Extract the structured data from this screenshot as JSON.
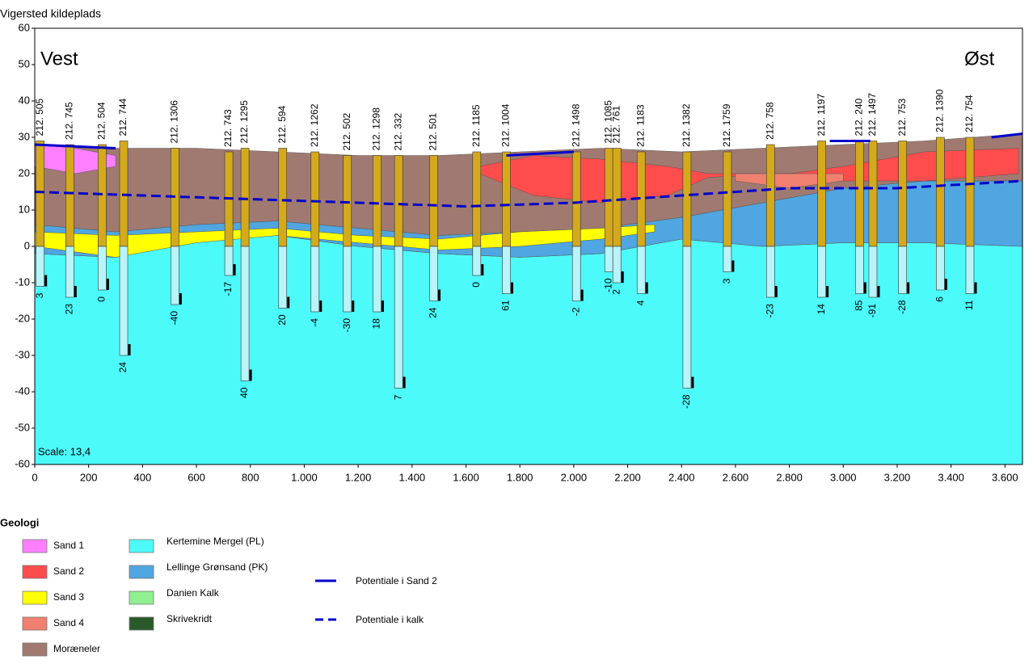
{
  "chart_data": {
    "type": "section",
    "title": "Vigersted kildeplads",
    "annotations": [
      "Vest",
      "Øst",
      "Scale: 13,4"
    ],
    "legend_title": "Geologi",
    "xlim": [
      0,
      3665
    ],
    "ylim": [
      -60,
      60
    ],
    "xticks": [
      0,
      200,
      400,
      600,
      800,
      {
        "value": 1000,
        "label": "1.000"
      },
      {
        "value": 1200,
        "label": "1.200"
      },
      {
        "value": 1400,
        "label": "1.400"
      },
      {
        "value": 1600,
        "label": "1.600"
      },
      {
        "value": 1800,
        "label": "1.800"
      },
      {
        "value": 2000,
        "label": "2.000"
      },
      {
        "value": 2200,
        "label": "2.200"
      },
      {
        "value": 2400,
        "label": "2.400"
      },
      {
        "value": 2600,
        "label": "2.600"
      },
      {
        "value": 2800,
        "label": "2.800"
      },
      {
        "value": 3000,
        "label": "3.000"
      },
      {
        "value": 3200,
        "label": "3.200"
      },
      {
        "value": 3400,
        "label": "3.400"
      },
      {
        "value": 3600,
        "label": "3.600"
      }
    ],
    "yticks": [
      -60,
      -50,
      -40,
      -30,
      -20,
      -10,
      0,
      10,
      20,
      30,
      40,
      50,
      60
    ],
    "layers": [
      {
        "name": "Sand 1",
        "color": "#ff80ff",
        "x": [
          0,
          150,
          300
        ],
        "top": [
          28,
          27,
          25
        ],
        "bottom": [
          22,
          20,
          22
        ]
      },
      {
        "name": "Sand 2",
        "color": "#ff4c4c",
        "x": [
          1650,
          1850,
          2100,
          2350,
          2500,
          2800,
          3000,
          3300,
          3650
        ],
        "top": [
          22,
          25,
          24,
          22,
          20,
          20,
          22,
          26,
          27
        ],
        "bottom": [
          20,
          14,
          12,
          14,
          19,
          20,
          18,
          18,
          20
        ]
      },
      {
        "name": "Sand 3",
        "color": "#ffff00",
        "x": [
          0,
          300,
          600,
          900,
          1200,
          1500,
          1800,
          2100,
          2300
        ],
        "top": [
          4,
          3,
          4,
          5,
          3,
          2,
          4,
          5,
          6
        ],
        "bottom": [
          0,
          -3,
          1,
          3,
          1,
          -1,
          0,
          2,
          4
        ]
      },
      {
        "name": "Sand 4",
        "color": "#f08070",
        "x": [
          2600,
          2800,
          3000
        ],
        "top": [
          20,
          20,
          20
        ],
        "bottom": [
          18,
          16,
          18
        ]
      },
      {
        "name": "Moræneler",
        "color": "#a07a70",
        "x": [
          0,
          300,
          600,
          900,
          1200,
          1500,
          1800,
          2100,
          2400,
          2700,
          3000,
          3300,
          3665
        ],
        "top": [
          28,
          27,
          27,
          26,
          25,
          25,
          26,
          27,
          26,
          27,
          28,
          29,
          31
        ],
        "bottom": [
          6,
          4,
          6,
          7,
          5,
          3,
          4,
          5,
          8,
          12,
          16,
          18,
          18
        ]
      },
      {
        "name": "Kertemine Mergel (PL)",
        "color": "#4dfafa",
        "x": [
          0,
          300,
          600,
          900,
          1200,
          1500,
          1800,
          2100,
          2400,
          2700,
          3000,
          3300,
          3665
        ],
        "top": [
          -2,
          -3,
          2,
          3,
          0,
          -2,
          -3,
          -2,
          2,
          0,
          1,
          1,
          0
        ],
        "bottom": [
          -60,
          -60,
          -60,
          -60,
          -60,
          -60,
          -60,
          -60,
          -60,
          -60,
          -60,
          -60,
          -60
        ]
      },
      {
        "name": "Lellinge Grønsand (PK)",
        "color": "#4fa6e0",
        "x": [
          0,
          300,
          600,
          900,
          1200,
          1500,
          1800,
          2100,
          2400,
          2700,
          3000,
          3300,
          3665
        ],
        "top": [
          6,
          4,
          6,
          7,
          5,
          3,
          4,
          5,
          8,
          12,
          16,
          18,
          18
        ],
        "bottom": [
          -2,
          -3,
          2,
          3,
          0,
          -2,
          -3,
          -2,
          2,
          0,
          1,
          1,
          0
        ]
      },
      {
        "name": "Danien Kalk",
        "color": "#90f090"
      },
      {
        "name": "Skrivekridt",
        "color": "#2a5a2a"
      }
    ],
    "series": [
      {
        "name": "Potentiale i Sand 2",
        "color": "#0000cc",
        "x": [
          0,
          150,
          300,
          1000,
          1750,
          2000,
          2500,
          2950,
          3100,
          3300,
          3550,
          3665
        ],
        "values": [
          28,
          27.5,
          27,
          null,
          25,
          26,
          null,
          29,
          29,
          null,
          30,
          31
        ]
      },
      {
        "name": "Potentiale i kalk",
        "color": "#0000cc",
        "dashed": true,
        "x": [
          0,
          400,
          800,
          1200,
          1600,
          2000,
          2400,
          2800,
          3200,
          3665
        ],
        "values": [
          15,
          14,
          13,
          12,
          11,
          12,
          14,
          16,
          16,
          18
        ]
      }
    ],
    "boreholes": [
      {
        "label": "212. 505",
        "x": 20,
        "top": 29,
        "bottom": -11,
        "bottom_label": 3
      },
      {
        "label": "212. 745",
        "x": 130,
        "top": 28,
        "bottom": -14,
        "bottom_label": 23
      },
      {
        "label": "212. 504",
        "x": 250,
        "top": 28,
        "bottom": -12,
        "bottom_label": 0
      },
      {
        "label": "212. 744",
        "x": 330,
        "top": 29,
        "bottom": -30,
        "bottom_label": 24
      },
      {
        "label": "212. 1306",
        "x": 520,
        "top": 27,
        "bottom": -16,
        "bottom_label": -40
      },
      {
        "label": "212. 743",
        "x": 720,
        "top": 26,
        "bottom": -8,
        "bottom_label": -17
      },
      {
        "label": "212. 1295",
        "x": 780,
        "top": 27,
        "bottom": -37,
        "bottom_label": 40
      },
      {
        "label": "212. 594",
        "x": 920,
        "top": 27,
        "bottom": -17,
        "bottom_label": 20
      },
      {
        "label": "212. 1262",
        "x": 1040,
        "top": 26,
        "bottom": -18,
        "bottom_label": -4
      },
      {
        "label": "212. 502",
        "x": 1160,
        "top": 25,
        "bottom": -18,
        "bottom_label": -30
      },
      {
        "label": "212. 1298",
        "x": 1270,
        "top": 25,
        "bottom": -18,
        "bottom_label": 18
      },
      {
        "label": "212. 332",
        "x": 1350,
        "top": 25,
        "bottom": -39,
        "bottom_label": 7
      },
      {
        "label": "212. 501",
        "x": 1480,
        "top": 25,
        "bottom": -15,
        "bottom_label": 24
      },
      {
        "label": "212. 1185",
        "x": 1640,
        "top": 26,
        "bottom": -8,
        "bottom_label": 0
      },
      {
        "label": "212. 1004",
        "x": 1750,
        "top": 26,
        "bottom": -13,
        "bottom_label": 61
      },
      {
        "label": "212. 1498",
        "x": 2010,
        "top": 26,
        "bottom": -15,
        "bottom_label": -2
      },
      {
        "label": "212. 1085",
        "x": 2130,
        "top": 27,
        "bottom": -7,
        "bottom_label": -10
      },
      {
        "label": "212. 761",
        "x": 2160,
        "top": 27,
        "bottom": -10,
        "bottom_label": 2
      },
      {
        "label": "212. 1183",
        "x": 2250,
        "top": 26,
        "bottom": -13,
        "bottom_label": 4
      },
      {
        "label": "212. 1382",
        "x": 2420,
        "top": 26,
        "bottom": -39,
        "bottom_label": -28
      },
      {
        "label": "212. 1759",
        "x": 2570,
        "top": 26,
        "bottom": -7,
        "bottom_label": 3
      },
      {
        "label": "212. 758",
        "x": 2730,
        "top": 28,
        "bottom": -14,
        "bottom_label": -23
      },
      {
        "label": "212. 1197",
        "x": 2920,
        "top": 29,
        "bottom": -14,
        "bottom_label": 14
      },
      {
        "label": "212. 240",
        "x": 3060,
        "top": 29,
        "bottom": -13,
        "bottom_label": 85
      },
      {
        "label": "212. 1497",
        "x": 3110,
        "top": 29,
        "bottom": -14,
        "bottom_label": -91
      },
      {
        "label": "212. 753",
        "x": 3220,
        "top": 29,
        "bottom": -13,
        "bottom_label": -28
      },
      {
        "label": "212. 1390",
        "x": 3360,
        "top": 30,
        "bottom": -12,
        "bottom_label": 6
      },
      {
        "label": "212. 754",
        "x": 3470,
        "top": 30,
        "bottom": -13,
        "bottom_label": 11
      }
    ]
  }
}
